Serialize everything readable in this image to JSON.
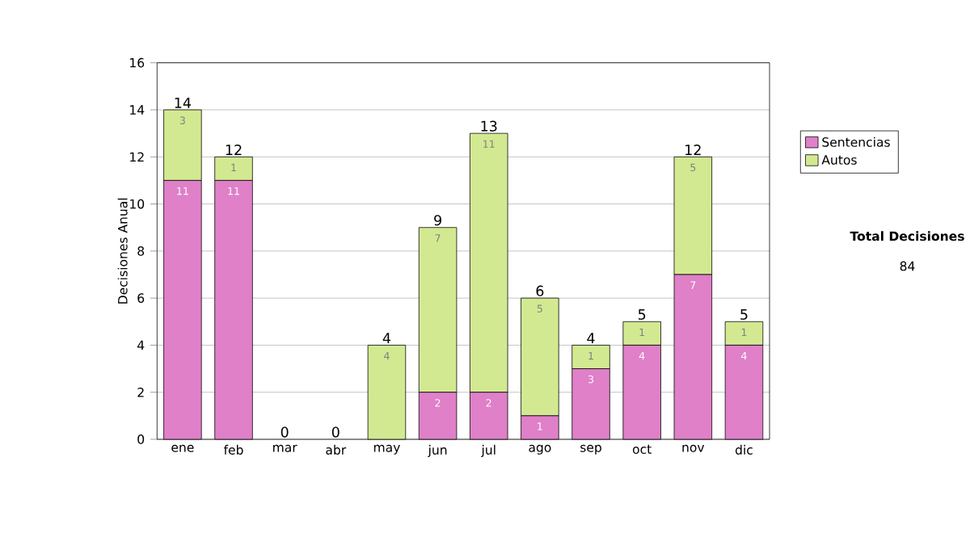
{
  "chart_data": {
    "type": "bar",
    "stacked": true,
    "ylabel": "Decisiones Anual",
    "categories": [
      "ene",
      "feb",
      "mar",
      "abr",
      "may",
      "jun",
      "jul",
      "ago",
      "sep",
      "oct",
      "nov",
      "dic"
    ],
    "series": [
      {
        "name": "Sentencias",
        "color": "#df80c8",
        "values": [
          11,
          11,
          0,
          0,
          0,
          2,
          2,
          1,
          3,
          4,
          7,
          4
        ],
        "value_labels": [
          "11",
          "11",
          null,
          null,
          null,
          "2",
          "2",
          "1",
          "3",
          "4",
          "7",
          "4"
        ]
      },
      {
        "name": "Autos",
        "color": "#d3e991",
        "values": [
          3,
          1,
          0,
          0,
          4,
          7,
          11,
          5,
          1,
          1,
          5,
          1
        ],
        "value_labels": [
          "3",
          "1",
          null,
          null,
          "4",
          "7",
          "11",
          "5",
          "1",
          "1",
          "5",
          "1"
        ]
      }
    ],
    "totals": [
      "14",
      "12",
      "0",
      "0",
      "4",
      "9",
      "13",
      "6",
      "4",
      "5",
      "12",
      "5"
    ],
    "ylim": [
      0,
      16
    ],
    "yticks": [
      0,
      2,
      4,
      6,
      8,
      10,
      12,
      14,
      16
    ],
    "grid": "y",
    "legend": "right",
    "annotations": [
      "Total Decisiones",
      "84"
    ]
  }
}
